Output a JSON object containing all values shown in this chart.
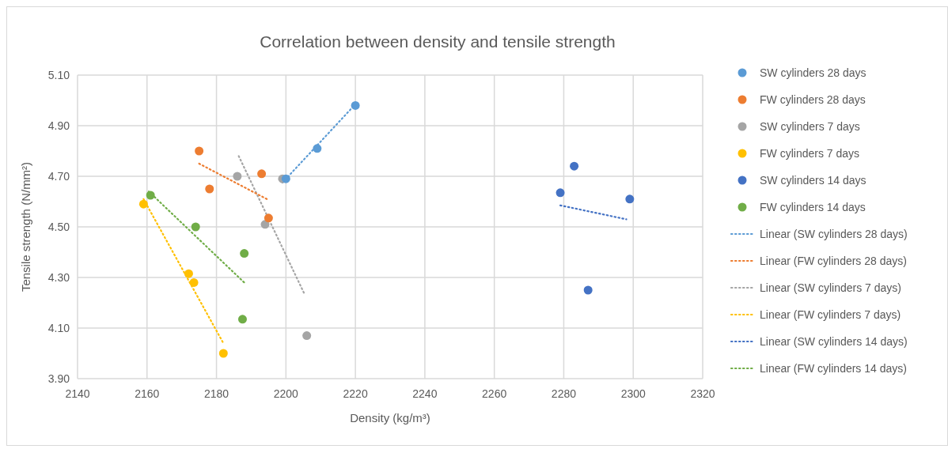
{
  "chart_data": {
    "type": "scatter",
    "title": "Correlation between density and tensile strength",
    "xlabel": "Density (kg/m³)",
    "ylabel": "Tensile strength (N/mm²)",
    "xlim": [
      2140,
      2320
    ],
    "xticks": [
      2140,
      2160,
      2180,
      2200,
      2220,
      2240,
      2260,
      2280,
      2300,
      2320
    ],
    "ylim": [
      3.9,
      5.1
    ],
    "yticks": [
      {
        "value": 3.9,
        "label": "3.90"
      },
      {
        "value": 4.1,
        "label": "4.10"
      },
      {
        "value": 4.3,
        "label": "4.30"
      },
      {
        "value": 4.5,
        "label": "4.50"
      },
      {
        "value": 4.7,
        "label": "4.70"
      },
      {
        "value": 4.9,
        "label": "4.90"
      },
      {
        "value": 5.1,
        "label": "5.10"
      }
    ],
    "grid": true,
    "legend": "right",
    "marker": "circle",
    "series": [
      {
        "name": "SW cylinders 28 days",
        "color": "#5b9bd5",
        "x": [
          2200,
          2209,
          2220
        ],
        "values": [
          4.69,
          4.81,
          4.98
        ]
      },
      {
        "name": "FW cylinders 28 days",
        "color": "#ed7d31",
        "x": [
          2175,
          2178,
          2193,
          2195
        ],
        "values": [
          4.8,
          4.65,
          4.71,
          4.535
        ]
      },
      {
        "name": "SW cylinders 7 days",
        "color": "#a5a5a5",
        "x": [
          2186,
          2194,
          2199,
          2206
        ],
        "values": [
          4.7,
          4.51,
          4.69,
          4.07
        ]
      },
      {
        "name": "FW cylinders 7 days",
        "color": "#ffc000",
        "x": [
          2159,
          2172,
          2173.5,
          2182
        ],
        "values": [
          4.59,
          4.315,
          4.28,
          4.0
        ]
      },
      {
        "name": "SW cylinders 14 days",
        "color": "#4472c4",
        "x": [
          2279,
          2283,
          2287,
          2299
        ],
        "values": [
          4.635,
          4.74,
          4.25,
          4.61
        ]
      },
      {
        "name": "FW cylinders 14 days",
        "color": "#70ad47",
        "x": [
          2161,
          2174,
          2188,
          2187.5
        ],
        "values": [
          4.625,
          4.5,
          4.395,
          4.135
        ]
      },
      {
        "name": "Linear (SW cylinders 28 days)",
        "type": "line",
        "line_style": "dotted",
        "marker": "none",
        "color": "#5b9bd5",
        "x": [
          2199,
          2219
        ],
        "values": [
          4.675,
          4.97
        ]
      },
      {
        "name": "Linear (FW cylinders 28 days)",
        "type": "line",
        "line_style": "dotted",
        "marker": "none",
        "color": "#ed7d31",
        "x": [
          2175,
          2194.5
        ],
        "values": [
          4.75,
          4.61
        ]
      },
      {
        "name": "Linear (SW cylinders 7 days)",
        "type": "line",
        "line_style": "dotted",
        "marker": "none",
        "color": "#a5a5a5",
        "x": [
          2186.4,
          2205.5
        ],
        "values": [
          4.78,
          4.23
        ]
      },
      {
        "name": "Linear (FW cylinders 7 days)",
        "type": "line",
        "line_style": "dotted",
        "marker": "none",
        "color": "#ffc000",
        "x": [
          2159,
          2182
        ],
        "values": [
          4.61,
          4.04
        ]
      },
      {
        "name": "Linear (SW cylinders 14 days)",
        "type": "line",
        "line_style": "dotted",
        "marker": "none",
        "color": "#4472c4",
        "x": [
          2279,
          2298
        ],
        "values": [
          4.585,
          4.53
        ]
      },
      {
        "name": "Linear (FW cylinders 14 days)",
        "type": "line",
        "line_style": "dotted",
        "marker": "none",
        "color": "#70ad47",
        "x": [
          2160.5,
          2188
        ],
        "values": [
          4.64,
          4.28
        ]
      }
    ]
  }
}
